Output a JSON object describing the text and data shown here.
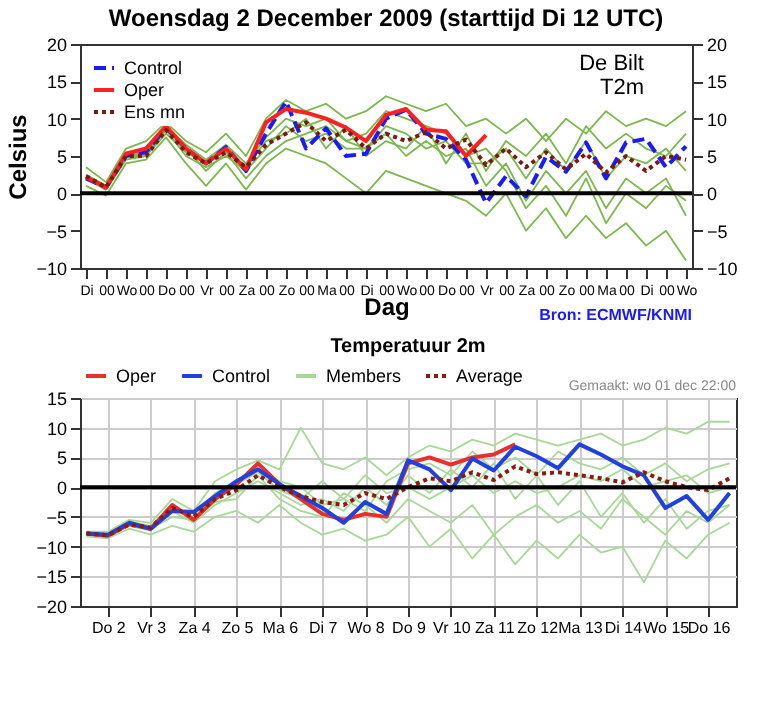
{
  "chart_data": [
    {
      "type": "line",
      "title": "Woensdag  2 December 2009 (starttijd  Di 12 UTC)",
      "xlabel": "Dag",
      "ylabel": "Celsius",
      "legend": "top left",
      "annotations": [
        "De Bilt",
        "T2m",
        "Bron: ECMWF/KNMI"
      ],
      "categories": [
        "Di",
        "00",
        "Wo",
        "00",
        "Do",
        "00",
        "Vr",
        "00",
        "Za",
        "00",
        "Zo",
        "00",
        "Ma",
        "00",
        "Di",
        "00",
        "Wo",
        "00",
        "Do",
        "00",
        "Vr",
        "00",
        "Za",
        "00",
        "Zo",
        "00",
        "Ma",
        "00",
        "Di",
        "00",
        "Wo"
      ],
      "ylim": [
        -10,
        20
      ],
      "yticks": [
        -10,
        -5,
        0,
        5,
        10,
        15,
        20
      ],
      "y2lim": [
        -10,
        20
      ],
      "y2ticks": [
        -10,
        -5,
        0,
        5,
        10,
        15,
        20
      ],
      "ref_lines": [
        {
          "axis": "y",
          "value": 0,
          "color": "#000000"
        }
      ],
      "series": [
        {
          "color": "#7cb84f",
          "values": [
            3.5,
            1.5,
            6,
            7,
            9.5,
            7,
            5.5,
            8,
            5,
            10,
            12.5,
            11,
            12,
            10,
            11,
            13,
            12,
            11,
            12,
            9,
            10,
            8,
            10,
            7,
            10,
            8,
            11,
            9,
            10,
            9,
            11
          ]
        },
        {
          "color": "#7cb84f",
          "values": [
            1,
            -0.3,
            4,
            4.5,
            7.5,
            4,
            1,
            4,
            0.5,
            4,
            6,
            5,
            4,
            2,
            0,
            3,
            2,
            1,
            0,
            -1,
            -3,
            0,
            -5,
            -2,
            -6,
            -3,
            -6,
            -4,
            -7,
            -5,
            -9
          ]
        },
        {
          "color": "#7cb84f",
          "values": [
            2,
            0.5,
            5,
            5,
            8.5,
            5,
            3.5,
            5,
            3,
            6,
            9,
            7,
            8,
            6,
            6,
            9,
            8,
            6,
            7,
            4,
            4,
            6,
            2,
            6,
            3,
            7,
            2,
            5,
            4,
            6,
            3
          ]
        },
        {
          "color": "#7cb84f",
          "values": [
            2.5,
            1,
            5.5,
            6,
            9,
            6.5,
            4.5,
            6.5,
            4,
            7.5,
            10,
            9,
            10,
            7,
            8,
            11,
            10,
            9,
            8,
            5,
            6,
            3,
            -2,
            1,
            -3,
            2,
            -4,
            0,
            -2,
            1,
            -1
          ]
        },
        {
          "color": "#7cb84f",
          "values": [
            2,
            0.5,
            4.5,
            5,
            8,
            5.5,
            4,
            6,
            3.5,
            7,
            8,
            10,
            6,
            9,
            5,
            7,
            6,
            9,
            4,
            8,
            3,
            7,
            5,
            8,
            4,
            9,
            6,
            8,
            6,
            5,
            8
          ]
        },
        {
          "color": "#7cb84f",
          "values": [
            2.5,
            1,
            5,
            5.5,
            8.5,
            6,
            3,
            5.5,
            2,
            5,
            7,
            8,
            9,
            7,
            6,
            8,
            5,
            7,
            5,
            6,
            1,
            4,
            -1,
            3,
            0,
            3,
            -2,
            2,
            0,
            2,
            -3
          ]
        },
        {
          "name": "Control",
          "color": "#1a1aff",
          "line_style": "dashed",
          "values": [
            2.0,
            0.8,
            5.0,
            5.5,
            8.8,
            6.0,
            4.0,
            6.2,
            3.0,
            8.0,
            12.3,
            6.0,
            8.7,
            5.0,
            5.3,
            10.0,
            11.2,
            8.0,
            7.3,
            4.5,
            -1.3,
            2.3,
            -0.4,
            4.9,
            2.9,
            6.8,
            2.0,
            6.8,
            7.3,
            3.5,
            6.3
          ]
        },
        {
          "name": "Oper",
          "color": "#ff2020",
          "line_style": "solid",
          "values": [
            2.2,
            0.8,
            5.3,
            6.0,
            9.0,
            6.0,
            4.0,
            6.0,
            3.2,
            9.5,
            11.3,
            10.8,
            10.0,
            8.8,
            7.0,
            10.5,
            11.3,
            8.5,
            8.3,
            5.0,
            7.8,
            null,
            null,
            null,
            null,
            null,
            null,
            null,
            null,
            null,
            null
          ]
        },
        {
          "name": "Ens mn",
          "color": "#7a1a10",
          "line_style": "dotted",
          "values": [
            2.3,
            0.8,
            5.0,
            5.0,
            8.5,
            5.5,
            4.0,
            5.5,
            3.5,
            6.5,
            8.0,
            9.5,
            7.0,
            8.5,
            6.0,
            8.0,
            7.0,
            8.2,
            6.0,
            7.2,
            3.8,
            6.0,
            3.5,
            5.5,
            3.2,
            5.3,
            2.8,
            5.0,
            3.0,
            5.0,
            4.5
          ]
        }
      ]
    },
    {
      "type": "line",
      "title": "Temperatuur 2m",
      "legend": "top",
      "grid": true,
      "annotations": [
        "Gemaakt: wo 01 dec 22:00"
      ],
      "categories": [
        null,
        "Do 2",
        null,
        "Vr 3",
        null,
        "Za 4",
        null,
        "Zo 5",
        null,
        "Ma 6",
        null,
        "Di 7",
        null,
        "Wo 8",
        null,
        "Do 9",
        null,
        "Vr 10",
        null,
        "Za 11",
        null,
        "Zo 12",
        null,
        "Ma 13",
        null,
        "Di 14",
        null,
        "Wo 15",
        null,
        "Do 16",
        null
      ],
      "ylim": [
        -20,
        15
      ],
      "yticks": [
        -20,
        -15,
        -10,
        -5,
        0,
        5,
        10,
        15
      ],
      "ref_lines": [
        {
          "axis": "y",
          "value": 0,
          "color": "#000000"
        }
      ],
      "series": [
        {
          "name": "Oper",
          "color": "#e8302a",
          "line_style": "solid",
          "values": [
            -7.8,
            -8.2,
            -6.2,
            -7.0,
            -3.0,
            -5.5,
            -2.0,
            0.5,
            4.0,
            0.5,
            -2.0,
            -4.5,
            -5.5,
            -4.5,
            -5.0,
            4.0,
            5.0,
            3.8,
            5.0,
            5.5,
            7.2,
            null,
            null,
            null,
            null,
            null,
            null,
            null,
            null,
            null,
            null
          ]
        },
        {
          "name": "Control",
          "color": "#2040e0",
          "line_style": "solid",
          "values": [
            -7.8,
            -8.0,
            -6.0,
            -7.0,
            -4.0,
            -4.2,
            -1.5,
            1.0,
            3.0,
            0.5,
            -1.5,
            -3.5,
            -6.0,
            -2.5,
            -4.5,
            4.5,
            3.0,
            -0.5,
            4.8,
            2.8,
            6.8,
            5.2,
            3.2,
            7.2,
            5.5,
            3.5,
            2.0,
            -3.5,
            -1.5,
            -5.5,
            -1.0
          ]
        },
        {
          "name": "Members",
          "color": "#a8d898",
          "values": [
            -7.5,
            -7.5,
            -5.5,
            -6,
            -2,
            -4,
            1,
            3,
            4.5,
            3,
            10,
            4,
            3,
            5,
            2,
            5,
            7,
            6,
            8,
            7,
            9,
            8,
            7,
            8,
            9,
            7,
            8,
            10,
            9,
            11,
            11
          ]
        },
        {
          "color": "#a8d898",
          "values": [
            -8.3,
            -8.6,
            -7,
            -8,
            -6.5,
            -7.5,
            -5,
            -4,
            -6,
            -3,
            -6,
            -8,
            -7,
            -9,
            -8,
            -5,
            -10,
            -7,
            -12,
            -8,
            -13,
            -9,
            -12,
            -8,
            -11,
            -10,
            -16,
            -9,
            -12,
            -8,
            -6
          ]
        },
        {
          "color": "#a8d898",
          "values": [
            -8,
            -8.3,
            -6.5,
            -7.3,
            -4,
            -6,
            -3,
            -1,
            1,
            -1,
            -3,
            -2,
            -4,
            0,
            -3,
            2,
            -1,
            3,
            0,
            4,
            -2,
            2,
            -3,
            1,
            -5,
            -1,
            -6,
            -2,
            -7,
            -4,
            -3
          ]
        },
        {
          "color": "#a8d898",
          "values": [
            -7.8,
            -8,
            -6,
            -7,
            -3,
            -5,
            -1,
            1,
            3,
            1,
            0,
            -3,
            -2,
            -4,
            1,
            3,
            4,
            2,
            6,
            3,
            5,
            2,
            6,
            4,
            3,
            5,
            2,
            4,
            1,
            3,
            4
          ]
        },
        {
          "color": "#a8d898",
          "values": [
            -8,
            -8.2,
            -6.3,
            -7,
            -5,
            -5.5,
            -2.5,
            -2,
            2,
            -2,
            -4,
            -5,
            -1,
            -3,
            -6,
            -2,
            -4,
            -6,
            -3,
            -8,
            -5,
            -3,
            -6,
            -4,
            -7,
            -2,
            -5,
            -8,
            -4,
            -6,
            -3
          ]
        },
        {
          "color": "#a8d898",
          "values": [
            -7.6,
            -7.8,
            -5.8,
            -6.5,
            -3.5,
            -4.5,
            -1.5,
            0.5,
            2.5,
            -0.5,
            -2,
            1,
            -2,
            2,
            -1,
            0,
            -2,
            0,
            2,
            -1,
            1,
            -1,
            0,
            2,
            1,
            3,
            0,
            1,
            2,
            -1,
            0
          ]
        },
        {
          "name": "Average",
          "color": "#8b1a10",
          "line_style": "dotted",
          "values": [
            -7.8,
            -8.1,
            -6.3,
            -6.8,
            -3.5,
            -5.0,
            -2.0,
            -0.5,
            2.0,
            0.0,
            -1.5,
            -2.5,
            -3.0,
            -1.0,
            -2.0,
            0.0,
            1.5,
            1.0,
            2.5,
            1.2,
            3.5,
            2.2,
            2.5,
            2.0,
            1.5,
            0.8,
            2.5,
            1.0,
            0.0,
            -0.5,
            1.5
          ]
        }
      ]
    }
  ]
}
